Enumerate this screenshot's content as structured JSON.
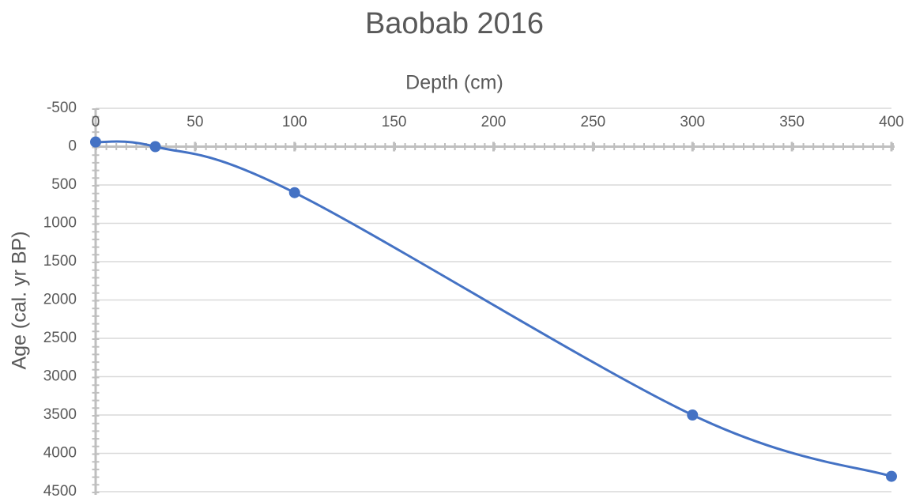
{
  "chart_data": {
    "type": "scatter",
    "title": "Baobab 2016",
    "x_label": "Depth (cm)",
    "y_label": "Age (cal. yr BP)",
    "series": [
      {
        "name": "Baobab 2016",
        "color": "#4472c4",
        "x": [
          0,
          30,
          100,
          300,
          400
        ],
        "values": [
          -60,
          0,
          600,
          3500,
          4300
        ]
      }
    ],
    "xlim": [
      0,
      400
    ],
    "xticks": [
      0,
      50,
      100,
      150,
      200,
      250,
      300,
      350,
      400
    ],
    "ylim": [
      -500,
      4500
    ],
    "yticks": [
      -500,
      0,
      500,
      1000,
      1500,
      2000,
      2500,
      3000,
      3500,
      4000,
      4500
    ],
    "y_inverted": true,
    "grid": true,
    "smooth": true
  }
}
